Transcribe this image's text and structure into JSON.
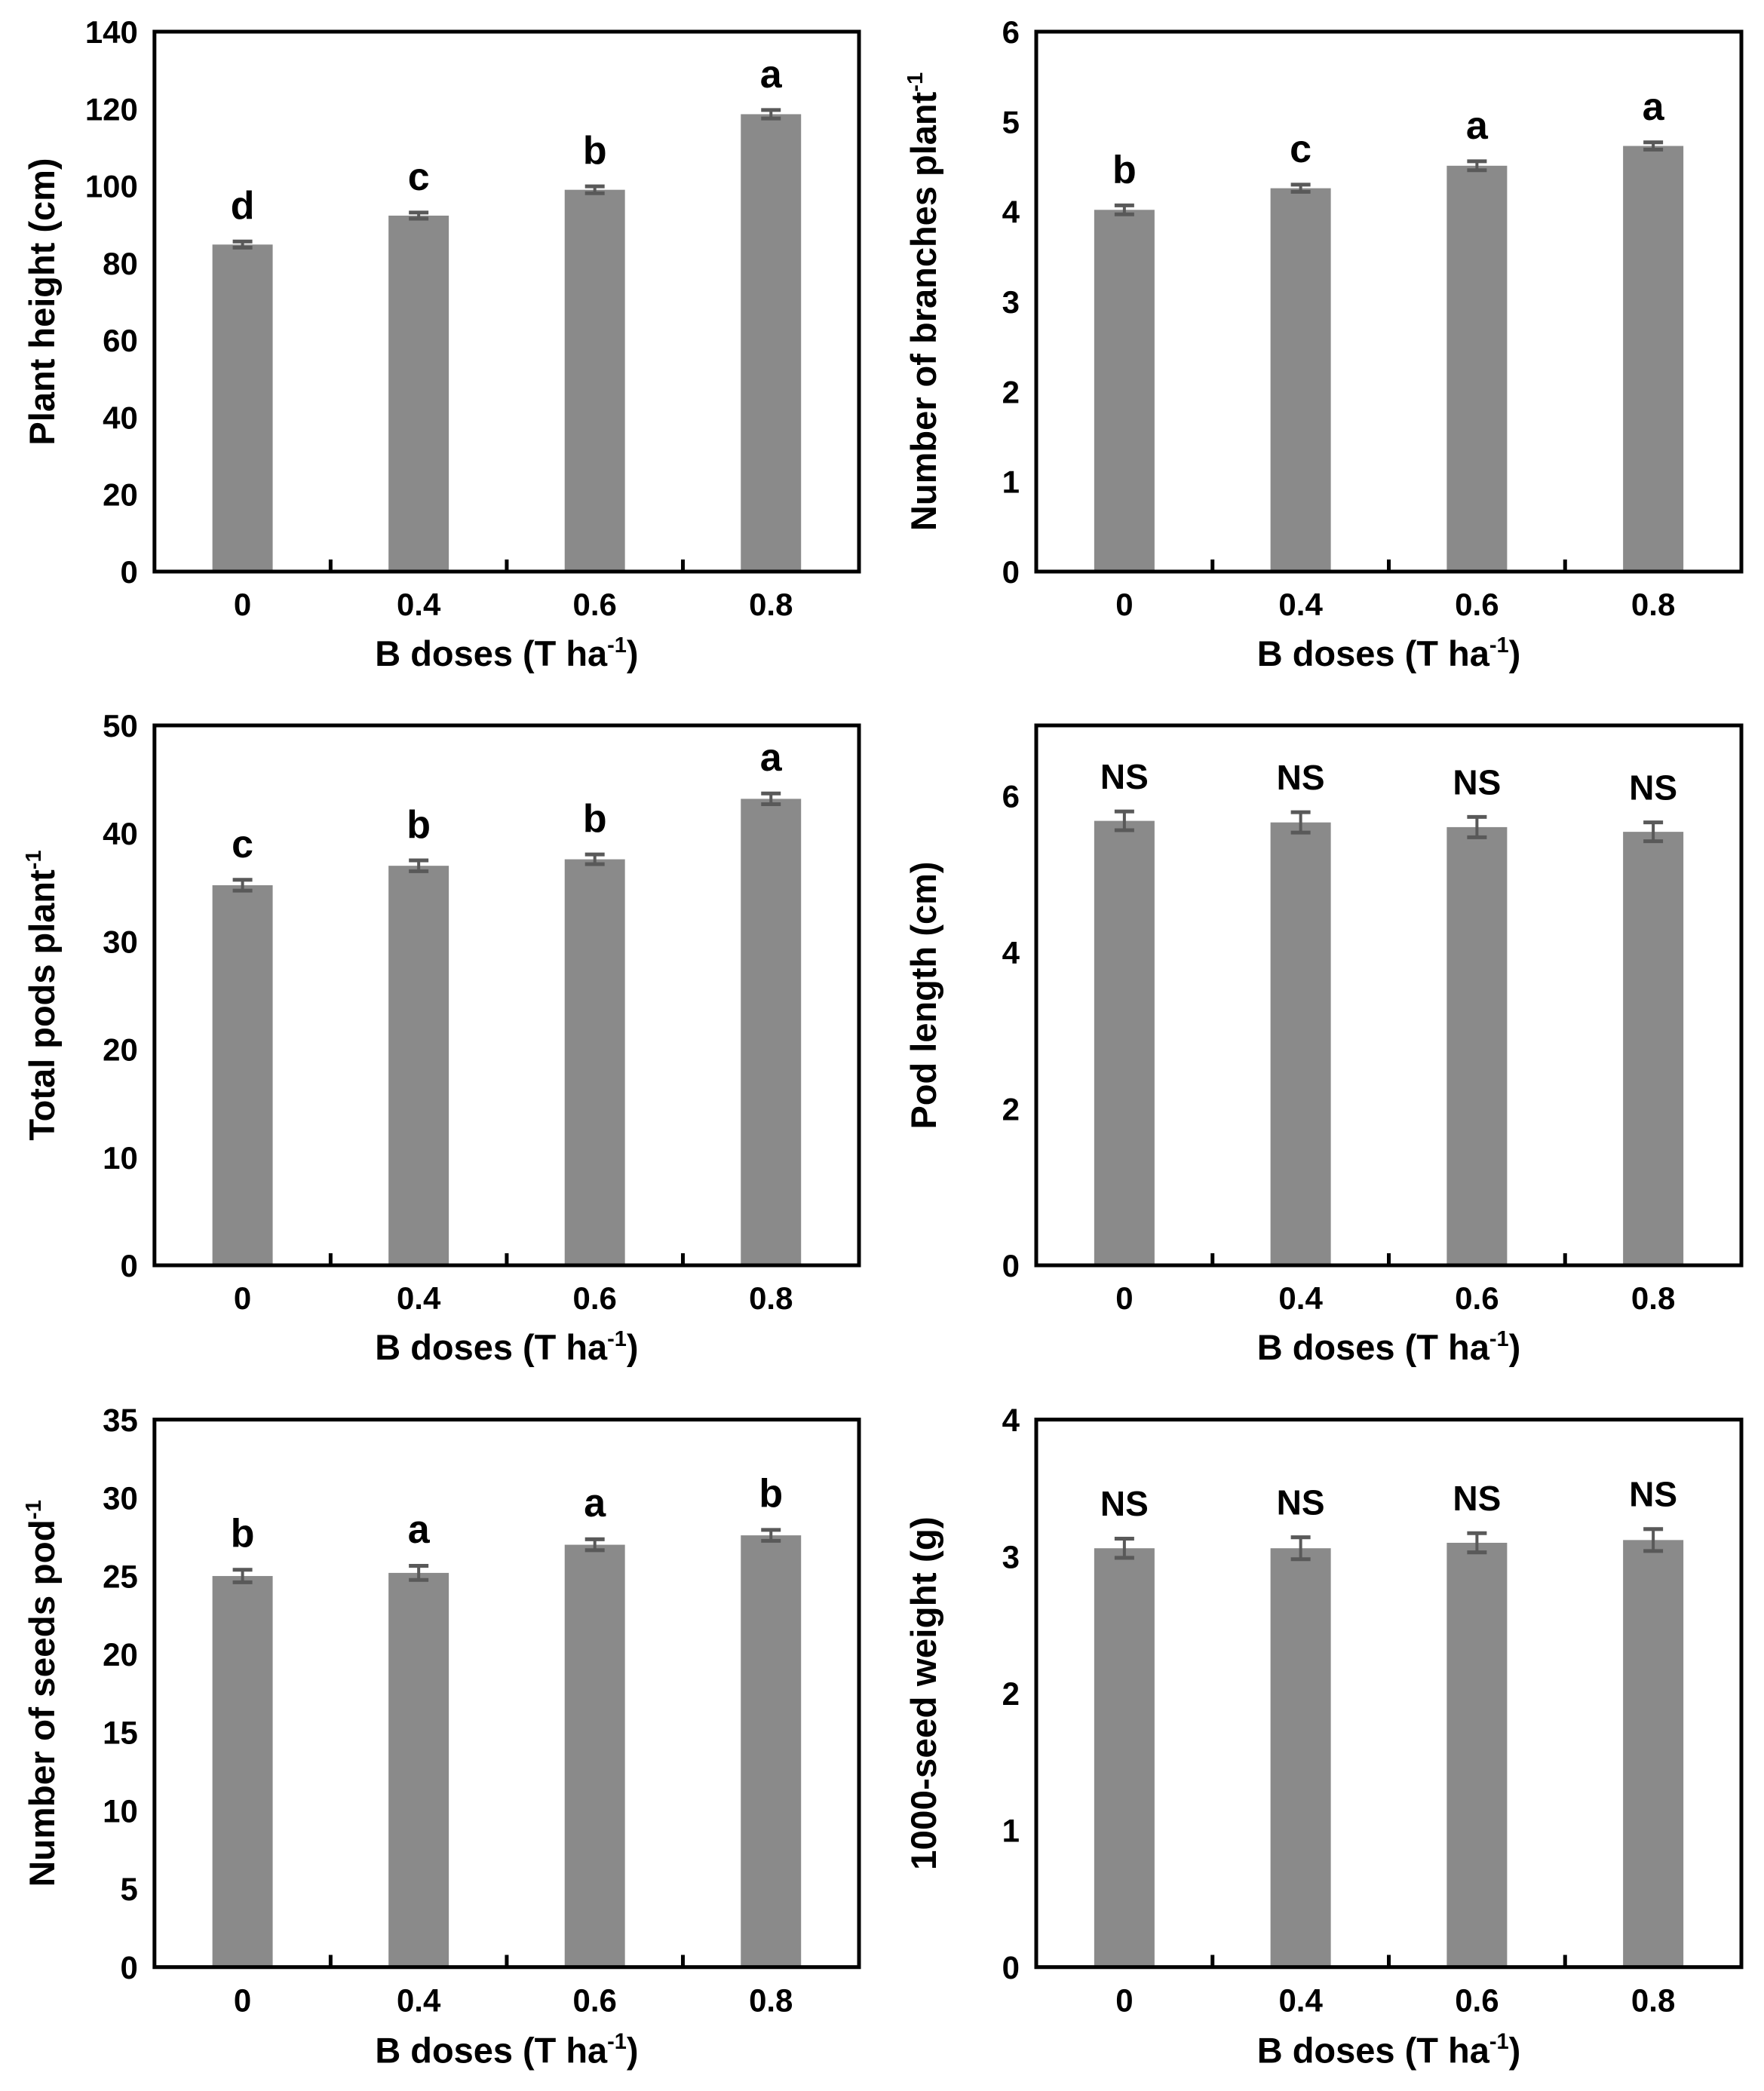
{
  "figure": {
    "background": "#ffffff",
    "bar_color": "#8a8a8a",
    "error_bar_color": "#595959",
    "axis_color": "#000000",
    "text_color": "#000000",
    "xlabel_text": "B doses (T ha⁻¹)",
    "xlabel_segments": [
      {
        "t": "B doses (T ha"
      },
      {
        "t": "-1",
        "sup": true
      },
      {
        "t": ")"
      }
    ]
  },
  "chart_data": [
    {
      "type": "bar",
      "id": "plant-height",
      "ylabel_text": "Plant height (cm)",
      "ylabel_segments": [
        {
          "t": "Plant height (cm)"
        }
      ],
      "xlabel_text": "B doses (T ha⁻¹)",
      "categories": [
        "0",
        "0.4",
        "0.6",
        "0.8"
      ],
      "values": [
        84.8,
        92.3,
        99.0,
        118.6
      ],
      "errors": [
        0.8,
        0.8,
        0.9,
        1.1
      ],
      "sig_labels": [
        "d",
        "c",
        "b",
        "a"
      ],
      "ylim": [
        0,
        140
      ],
      "ytick_step": 20,
      "grid": false,
      "legend": "none"
    },
    {
      "type": "bar",
      "id": "branches-per-plant",
      "ylabel_text": "Number of branches plant⁻¹",
      "ylabel_segments": [
        {
          "t": "Number of branches plant"
        },
        {
          "t": "-1",
          "sup": true
        }
      ],
      "xlabel_text": "B doses (T ha⁻¹)",
      "categories": [
        "0",
        "0.4",
        "0.6",
        "0.8"
      ],
      "values": [
        4.02,
        4.26,
        4.51,
        4.73
      ],
      "errors": [
        0.05,
        0.04,
        0.05,
        0.04
      ],
      "sig_labels": [
        "b",
        "c",
        "a",
        "a"
      ],
      "ylim": [
        0,
        6
      ],
      "ytick_step": 1,
      "grid": false,
      "legend": "none"
    },
    {
      "type": "bar",
      "id": "total-pods-per-plant",
      "ylabel_text": "Total pods plant⁻¹",
      "ylabel_segments": [
        {
          "t": "Total pods plant"
        },
        {
          "t": "-1",
          "sup": true
        }
      ],
      "xlabel_text": "B doses (T ha⁻¹)",
      "categories": [
        "0",
        "0.4",
        "0.6",
        "0.8"
      ],
      "values": [
        35.2,
        37.0,
        37.6,
        43.2
      ],
      "errors": [
        0.5,
        0.5,
        0.45,
        0.5
      ],
      "sig_labels": [
        "c",
        "b",
        "b",
        "a"
      ],
      "ylim": [
        0,
        50
      ],
      "ytick_step": 10,
      "grid": false,
      "legend": "none"
    },
    {
      "type": "bar",
      "id": "pod-length",
      "ylabel_text": "Pod length (cm)",
      "ylabel_segments": [
        {
          "t": "Pod length (cm)"
        }
      ],
      "xlabel_text": "B doses (T ha⁻¹)",
      "categories": [
        "0",
        "0.4",
        "0.6",
        "0.8"
      ],
      "values": [
        5.68,
        5.66,
        5.6,
        5.54
      ],
      "errors": [
        0.12,
        0.13,
        0.13,
        0.12
      ],
      "sig_labels": [
        "NS",
        "NS",
        "NS",
        "NS"
      ],
      "ylim": [
        0,
        6.9
      ],
      "ytick_step": 2,
      "grid": false,
      "legend": "none"
    },
    {
      "type": "bar",
      "id": "seeds-per-pod",
      "ylabel_text": "Number of seeds pod⁻¹",
      "ylabel_segments": [
        {
          "t": "Number of seeds pod"
        },
        {
          "t": "-1",
          "sup": true
        }
      ],
      "xlabel_text": "B doses (T ha⁻¹)",
      "categories": [
        "0",
        "0.4",
        "0.6",
        "0.8"
      ],
      "values": [
        25.0,
        25.2,
        27.0,
        27.6
      ],
      "errors": [
        0.4,
        0.45,
        0.35,
        0.35
      ],
      "sig_labels": [
        "b",
        "a",
        "a",
        "b"
      ],
      "ylim": [
        0,
        35
      ],
      "ytick_step": 5,
      "grid": false,
      "legend": "none"
    },
    {
      "type": "bar",
      "id": "thousand-seed-weight",
      "ylabel_text": "1000-seed weight (g)",
      "ylabel_segments": [
        {
          "t": "1000-seed weight (g)"
        }
      ],
      "xlabel_text": "B doses (T ha⁻¹)",
      "categories": [
        "0",
        "0.4",
        "0.6",
        "0.8"
      ],
      "values": [
        3.06,
        3.06,
        3.1,
        3.12
      ],
      "errors": [
        0.07,
        0.08,
        0.07,
        0.08
      ],
      "sig_labels": [
        "NS",
        "NS",
        "NS",
        "NS"
      ],
      "ylim": [
        0,
        4
      ],
      "ytick_step": 1,
      "grid": false,
      "legend": "none"
    }
  ]
}
